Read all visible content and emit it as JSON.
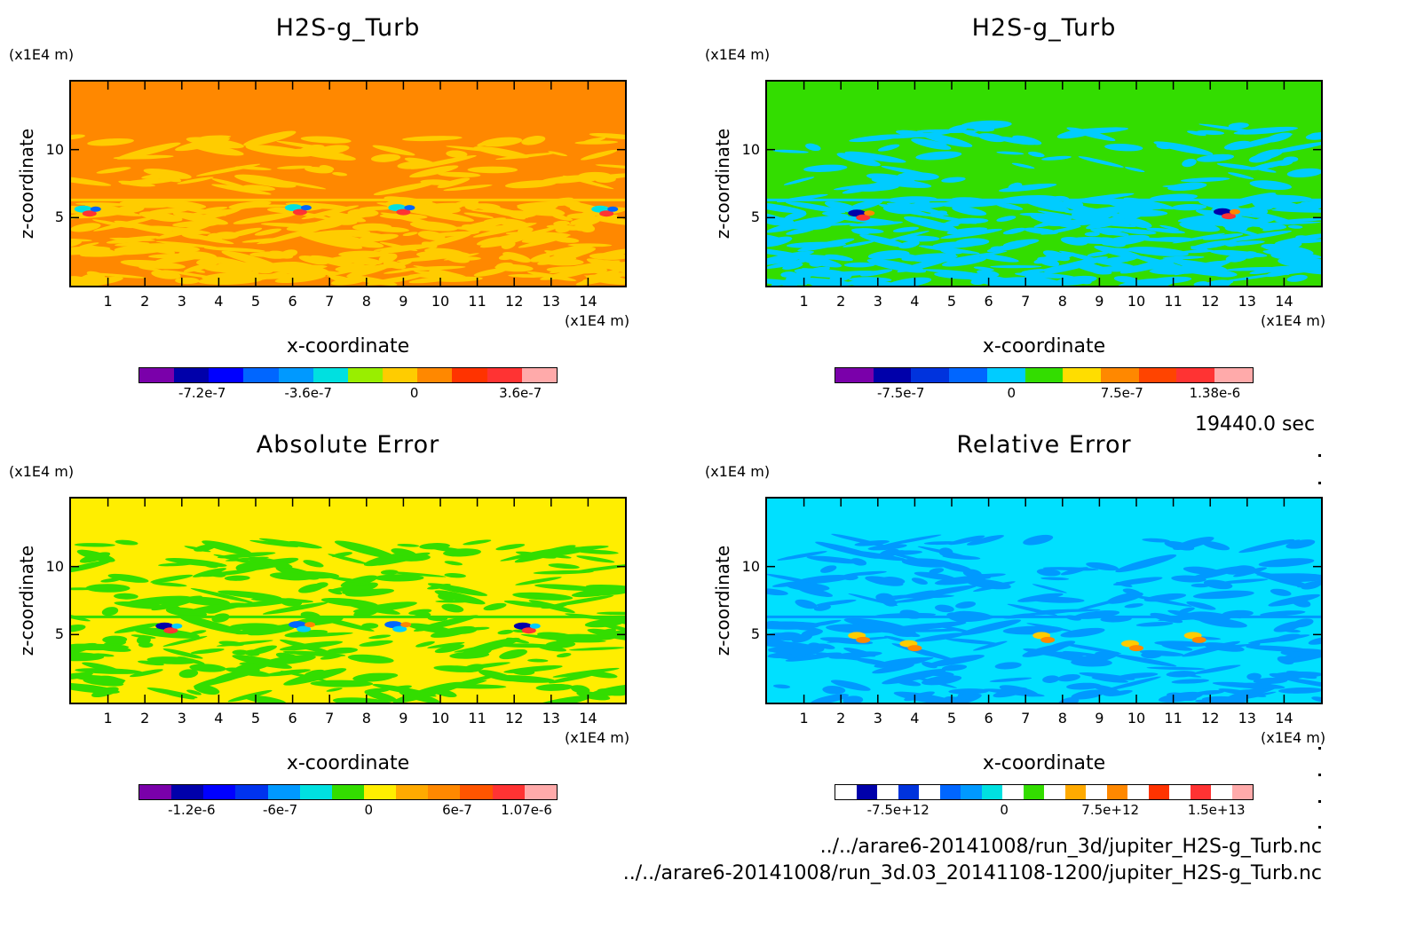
{
  "time_label": "19440.0 sec",
  "file_paths": [
    "../../arare6-20141008/run_3d/jupiter_H2S-g_Turb.nc",
    "../../arare6-20141008/run_3d.03_20141108-1200/jupiter_H2S-g_Turb.nc"
  ],
  "chart_data": [
    {
      "type": "heatmap",
      "title": "H2S-g_Turb",
      "xlabel": "x-coordinate",
      "ylabel": "z-coordinate",
      "x_unit": "(x1E4 m)",
      "z_unit": "(x1E4 m)",
      "xlim": [
        0,
        15
      ],
      "ylim": [
        0,
        15
      ],
      "x_ticks": [
        "1",
        "2",
        "3",
        "4",
        "5",
        "6",
        "7",
        "8",
        "9",
        "10",
        "11",
        "12",
        "13",
        "14"
      ],
      "z_ticks": [
        "5",
        "10"
      ],
      "background": "#ff8800",
      "field": [
        {
          "color": "#ffcc00",
          "z_range": [
            0.2,
            6.2
          ]
        },
        {
          "color": "#ffcc00",
          "z_range": [
            7,
            11
          ],
          "pattern": "sparse"
        }
      ],
      "features": [
        {
          "x": 0.5,
          "z": 5.5,
          "colors": [
            "#00e0e0",
            "#ff3333",
            "#0066ff"
          ]
        },
        {
          "x": 6.2,
          "z": 5.6,
          "colors": [
            "#00e0e0",
            "#ff3333",
            "#0066ff"
          ]
        },
        {
          "x": 9.0,
          "z": 5.6,
          "colors": [
            "#00e0e0",
            "#ff3333",
            "#0066ff"
          ]
        },
        {
          "x": 14.5,
          "z": 5.5,
          "colors": [
            "#00e0e0",
            "#ff3333",
            "#0066ff"
          ]
        }
      ],
      "colorbar": {
        "colors": [
          "#7a00aa",
          "#0000aa",
          "#0000ff",
          "#0066ff",
          "#0099ff",
          "#00e0e0",
          "#99ee00",
          "#ffcc00",
          "#ff8800",
          "#ff3300",
          "#ff3333",
          "#ffaaaa"
        ],
        "tick_labels": [
          "-7.2e-7",
          "-3.6e-7",
          "0",
          "3.6e-7"
        ],
        "tick_values": [
          -7.2e-07,
          -3.6e-07,
          0,
          3.6e-07
        ]
      }
    },
    {
      "type": "heatmap",
      "title": "H2S-g_Turb",
      "xlabel": "x-coordinate",
      "ylabel": "z-coordinate",
      "x_unit": "(x1E4 m)",
      "z_unit": "(x1E4 m)",
      "xlim": [
        0,
        15
      ],
      "ylim": [
        0,
        15
      ],
      "x_ticks": [
        "1",
        "2",
        "3",
        "4",
        "5",
        "6",
        "7",
        "8",
        "9",
        "10",
        "11",
        "12",
        "13",
        "14"
      ],
      "z_ticks": [
        "5",
        "10"
      ],
      "background": "#33dd00",
      "field": [
        {
          "color": "#00ccff",
          "z_range": [
            0,
            6.5
          ]
        },
        {
          "color": "#00ccff",
          "z_range": [
            7,
            12
          ],
          "pattern": "sparse"
        }
      ],
      "features": [
        {
          "x": 2.6,
          "z": 5.2,
          "colors": [
            "#0000aa",
            "#ff3333",
            "#ff8800"
          ]
        },
        {
          "x": 12.5,
          "z": 5.3,
          "colors": [
            "#0000aa",
            "#ff3333",
            "#ff8800"
          ]
        }
      ],
      "colorbar": {
        "colors": [
          "#7a00aa",
          "#0000aa",
          "#0033dd",
          "#0066ff",
          "#00ccff",
          "#33dd00",
          "#ffdd00",
          "#ff8800",
          "#ff4400",
          "#ff3333",
          "#ffaaaa"
        ],
        "tick_labels": [
          "-7.5e-7",
          "0",
          "7.5e-7",
          "1.38e-6"
        ],
        "tick_values": [
          -7.5e-07,
          0,
          7.5e-07,
          1.38e-06
        ]
      }
    },
    {
      "type": "heatmap",
      "title": "Absolute Error",
      "xlabel": "x-coordinate",
      "ylabel": "z-coordinate",
      "x_unit": "(x1E4 m)",
      "z_unit": "(x1E4 m)",
      "xlim": [
        0,
        15
      ],
      "ylim": [
        0,
        15
      ],
      "x_ticks": [
        "1",
        "2",
        "3",
        "4",
        "5",
        "6",
        "7",
        "8",
        "9",
        "10",
        "11",
        "12",
        "13",
        "14"
      ],
      "z_ticks": [
        "5",
        "10"
      ],
      "background": "#ffee00",
      "field": [
        {
          "color": "#33dd00",
          "z_range": [
            0,
            11.8
          ]
        }
      ],
      "features": [
        {
          "x": 2.7,
          "z": 5.5,
          "colors": [
            "#0000aa",
            "#ff3333",
            "#00ccff"
          ]
        },
        {
          "x": 6.3,
          "z": 5.6,
          "colors": [
            "#0066ff",
            "#00ccff",
            "#ff8800"
          ]
        },
        {
          "x": 8.9,
          "z": 5.6,
          "colors": [
            "#0066ff",
            "#00ccff",
            "#ff8800"
          ]
        },
        {
          "x": 12.4,
          "z": 5.5,
          "colors": [
            "#0000aa",
            "#ff3333",
            "#00ccff"
          ]
        }
      ],
      "colorbar": {
        "colors": [
          "#7a00aa",
          "#0000aa",
          "#0000ff",
          "#0033ee",
          "#0099ff",
          "#00e0e0",
          "#33dd00",
          "#ffee00",
          "#ffaa00",
          "#ff8800",
          "#ff5500",
          "#ff3333",
          "#ffaaaa"
        ],
        "tick_labels": [
          "-1.2e-6",
          "-6e-7",
          "0",
          "6e-7",
          "1.07e-6"
        ],
        "tick_values": [
          -1.2e-06,
          -6e-07,
          0,
          6e-07,
          1.07e-06
        ]
      }
    },
    {
      "type": "heatmap",
      "title": "Relative Error",
      "xlabel": "x-coordinate",
      "ylabel": "z-coordinate",
      "x_unit": "(x1E4 m)",
      "z_unit": "(x1E4 m)",
      "xlim": [
        0,
        15
      ],
      "ylim": [
        0,
        15
      ],
      "x_ticks": [
        "1",
        "2",
        "3",
        "4",
        "5",
        "6",
        "7",
        "8",
        "9",
        "10",
        "11",
        "12",
        "13",
        "14"
      ],
      "z_ticks": [
        "5",
        "10"
      ],
      "background": "#00e0ff",
      "field": [
        {
          "color": "#0099ff",
          "z_range": [
            0,
            12
          ]
        }
      ],
      "features": [
        {
          "x": 2.6,
          "z": 4.8,
          "colors": [
            "#ffcc00",
            "#ff8800"
          ]
        },
        {
          "x": 4.0,
          "z": 4.2,
          "colors": [
            "#ffcc00",
            "#ff8800"
          ]
        },
        {
          "x": 7.6,
          "z": 4.8,
          "colors": [
            "#ffcc00",
            "#ff8800"
          ]
        },
        {
          "x": 10.0,
          "z": 4.2,
          "colors": [
            "#ffcc00",
            "#ff8800"
          ]
        },
        {
          "x": 11.7,
          "z": 4.8,
          "colors": [
            "#ffcc00",
            "#ff8800"
          ]
        }
      ],
      "colorbar": {
        "colors": [
          "#ffffff",
          "#0000aa",
          "#ffffff",
          "#0033dd",
          "#ffffff",
          "#0066ff",
          "#0099ff",
          "#00e0e0",
          "#ffffff",
          "#33dd00",
          "#ffffff",
          "#ffaa00",
          "#ffffff",
          "#ff8800",
          "#ffffff",
          "#ff3300",
          "#ffffff",
          "#ff3333",
          "#ffffff",
          "#ffaaaa"
        ],
        "tick_labels": [
          "-7.5e+12",
          "0",
          "7.5e+12",
          "1.5e+13"
        ],
        "tick_values": [
          -7500000000000.0,
          0,
          7500000000000.0,
          15000000000000.0
        ]
      }
    }
  ]
}
